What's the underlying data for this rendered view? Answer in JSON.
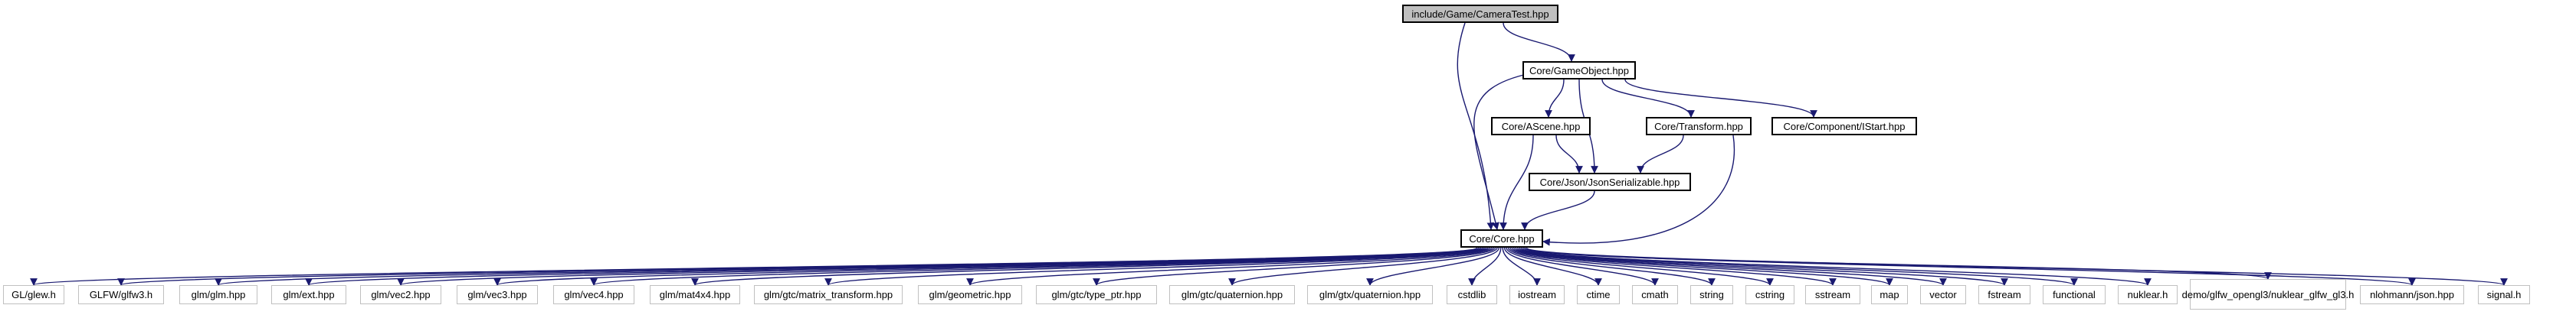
{
  "title": "include/Game/CameraTest.hpp",
  "colors": {
    "edge": "#191970",
    "root_fill": "#bfbfbf",
    "node_border": "#000000",
    "external_border": "#c0c0c0"
  },
  "nodes": {
    "root": "include/Game/CameraTest.hpp",
    "gameobject": "Core/GameObject.hpp",
    "ascene": "Core/AScene.hpp",
    "transform": "Core/Transform.hpp",
    "istart": "Core/Component/IStart.hpp",
    "jsonser": "Core/Json/JsonSerializable.hpp",
    "core": "Core/Core.hpp",
    "includes": [
      "GL/glew.h",
      "GLFW/glfw3.h",
      "glm/glm.hpp",
      "glm/ext.hpp",
      "glm/vec2.hpp",
      "glm/vec3.hpp",
      "glm/vec4.hpp",
      "glm/mat4x4.hpp",
      "glm/gtc/matrix_transform.hpp",
      "glm/geometric.hpp",
      "glm/gtc/type_ptr.hpp",
      "glm/gtc/quaternion.hpp",
      "glm/gtx/quaternion.hpp",
      "cstdlib",
      "iostream",
      "ctime",
      "cmath",
      "string",
      "cstring",
      "sstream",
      "map",
      "vector",
      "fstream",
      "functional",
      "nuklear.h",
      "demo/glfw_opengl3/nuklear_glfw_gl3.h",
      "nlohmann/json.hpp",
      "signal.h"
    ]
  }
}
